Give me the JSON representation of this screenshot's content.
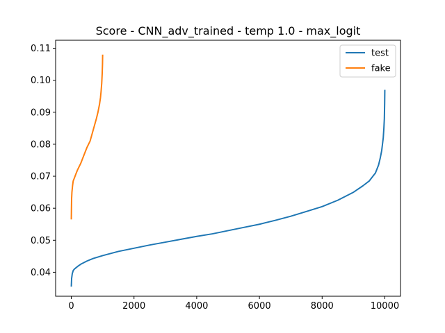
{
  "chart_data": {
    "type": "line",
    "title": "Score - CNN_adv_trained - temp 1.0 - max_logit",
    "xlabel": "",
    "ylabel": "",
    "xlim": [
      -500,
      10500
    ],
    "ylim": [
      0.0325,
      0.1125
    ],
    "x_ticks": [
      0,
      2000,
      4000,
      6000,
      8000,
      10000
    ],
    "x_tick_labels": [
      "0",
      "2000",
      "4000",
      "6000",
      "8000",
      "10000"
    ],
    "y_ticks": [
      0.04,
      0.05,
      0.06,
      0.07,
      0.08,
      0.09,
      0.1,
      0.11
    ],
    "y_tick_labels": [
      "0.04",
      "0.05",
      "0.06",
      "0.07",
      "0.08",
      "0.09",
      "0.10",
      "0.11"
    ],
    "grid": false,
    "legend_position": "top-right",
    "series": [
      {
        "name": "test",
        "color": "#1f77b4",
        "x": [
          0,
          10,
          30,
          60,
          100,
          200,
          300,
          500,
          700,
          1000,
          1500,
          2000,
          2500,
          3000,
          3500,
          4000,
          4500,
          5000,
          5500,
          6000,
          6500,
          7000,
          7500,
          8000,
          8500,
          9000,
          9300,
          9500,
          9700,
          9800,
          9850,
          9900,
          9950,
          9970,
          9985,
          9995,
          10000
        ],
        "values": [
          0.0355,
          0.038,
          0.0395,
          0.0405,
          0.041,
          0.0418,
          0.0425,
          0.0435,
          0.0443,
          0.0452,
          0.0465,
          0.0475,
          0.0485,
          0.0494,
          0.0503,
          0.0512,
          0.052,
          0.053,
          0.054,
          0.055,
          0.0562,
          0.0575,
          0.059,
          0.0605,
          0.0625,
          0.065,
          0.067,
          0.0685,
          0.071,
          0.0735,
          0.0755,
          0.078,
          0.082,
          0.085,
          0.088,
          0.093,
          0.097
        ]
      },
      {
        "name": "fake",
        "color": "#ff7f0e",
        "x": [
          0,
          5,
          10,
          20,
          40,
          60,
          100,
          150,
          200,
          300,
          400,
          500,
          600,
          700,
          800,
          850,
          900,
          930,
          950,
          970,
          985,
          995,
          1000
        ],
        "values": [
          0.0565,
          0.06,
          0.063,
          0.065,
          0.067,
          0.0685,
          0.0695,
          0.0708,
          0.072,
          0.074,
          0.0765,
          0.079,
          0.081,
          0.0845,
          0.088,
          0.09,
          0.0925,
          0.0945,
          0.0965,
          0.099,
          0.102,
          0.105,
          0.108
        ]
      }
    ]
  }
}
